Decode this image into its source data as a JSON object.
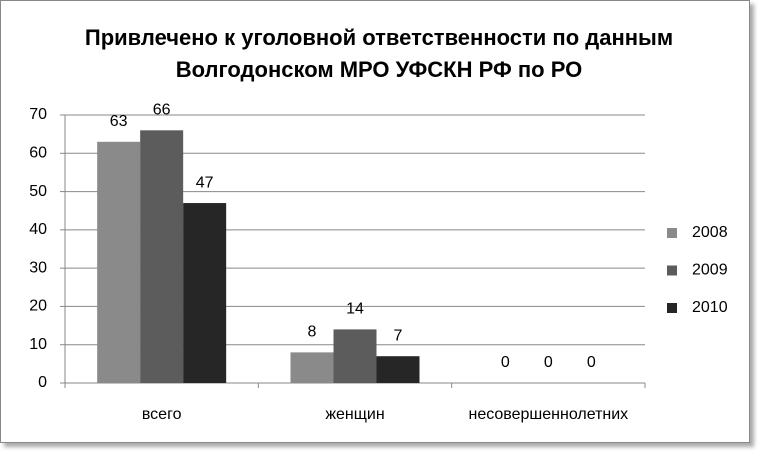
{
  "chart_data": {
    "type": "bar",
    "title": "Привлечено к уголовной ответственности по данным Волгодонском МРО УФСКН РФ по РО",
    "categories": [
      "всего",
      "женщин",
      "несовершеннолетних"
    ],
    "series": [
      {
        "name": "2008",
        "color": "#8a8a8a",
        "values": [
          63,
          8,
          0
        ]
      },
      {
        "name": "2009",
        "color": "#5c5c5c",
        "values": [
          66,
          14,
          0
        ]
      },
      {
        "name": "2010",
        "color": "#262626",
        "values": [
          47,
          7,
          0
        ]
      }
    ],
    "ylim": [
      0,
      70
    ],
    "yticks": [
      0,
      10,
      20,
      30,
      40,
      50,
      60,
      70
    ],
    "grid": true,
    "legend": "right",
    "data_labels": true
  }
}
